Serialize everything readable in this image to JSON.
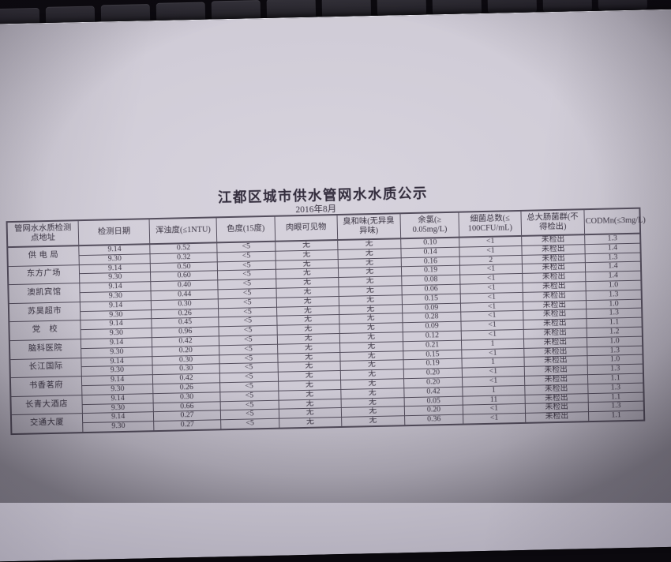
{
  "photo": {
    "background_color": "#0b090e",
    "paper_color": "#cfcbd6",
    "ink_color": "#3a3442",
    "table_line_color": "#534d5c"
  },
  "document": {
    "title": "江都区城市供水管网水水质公示",
    "subtitle": "2016年8月",
    "table": {
      "headers": [
        "管网水水质检测\n点地址",
        "检测日期",
        "浑浊度(≤1NTU)",
        "色度(15度)",
        "肉眼可见物",
        "臭和味(无异臭\n异味)",
        "余氯(≥\n0.05mg/L)",
        "细菌总数(≤\n100CFU/mL)",
        "总大肠菌群(不\n得检出)",
        "CODMn(≤3mg/L)"
      ],
      "groups": [
        {
          "location": "供 电 局",
          "rows": [
            [
              "9.14",
              "0.52",
              "<5",
              "无",
              "无",
              "0.10",
              "<1",
              "未检出",
              "1.3"
            ],
            [
              "9.30",
              "0.32",
              "<5",
              "无",
              "无",
              "0.14",
              "<1",
              "未检出",
              "1.4"
            ]
          ]
        },
        {
          "location": "东方广场",
          "rows": [
            [
              "9.14",
              "0.50",
              "<5",
              "无",
              "无",
              "0.16",
              "2",
              "未检出",
              "1.3"
            ],
            [
              "9.30",
              "0.60",
              "<5",
              "无",
              "无",
              "0.19",
              "<1",
              "未检出",
              "1.4"
            ]
          ]
        },
        {
          "location": "澳凯宾馆",
          "rows": [
            [
              "9.14",
              "0.40",
              "<5",
              "无",
              "无",
              "0.08",
              "<1",
              "未检出",
              "1.4"
            ],
            [
              "9.30",
              "0.44",
              "<5",
              "无",
              "无",
              "0.06",
              "<1",
              "未检出",
              "1.0"
            ]
          ]
        },
        {
          "location": "苏昊超市",
          "rows": [
            [
              "9.14",
              "0.30",
              "<5",
              "无",
              "无",
              "0.15",
              "<1",
              "未检出",
              "1.3"
            ],
            [
              "9.30",
              "0.26",
              "<5",
              "无",
              "无",
              "0.09",
              "<1",
              "未检出",
              "1.0"
            ]
          ]
        },
        {
          "location": "党　校",
          "rows": [
            [
              "9.14",
              "0.45",
              "<5",
              "无",
              "无",
              "0.28",
              "<1",
              "未检出",
              "1.3"
            ],
            [
              "9.30",
              "0.96",
              "<5",
              "无",
              "无",
              "0.09",
              "<1",
              "未检出",
              "1.1"
            ]
          ]
        },
        {
          "location": "脑科医院",
          "rows": [
            [
              "9.14",
              "0.42",
              "<5",
              "无",
              "无",
              "0.12",
              "<1",
              "未检出",
              "1.2"
            ],
            [
              "9.30",
              "0.20",
              "<5",
              "无",
              "无",
              "0.21",
              "1",
              "未检出",
              "1.0"
            ]
          ]
        },
        {
          "location": "长江国际",
          "rows": [
            [
              "9.14",
              "0.30",
              "<5",
              "无",
              "无",
              "0.15",
              "<1",
              "未检出",
              "1.3"
            ],
            [
              "9.30",
              "0.30",
              "<5",
              "无",
              "无",
              "0.19",
              "1",
              "未检出",
              "1.0"
            ]
          ]
        },
        {
          "location": "书香茗府",
          "rows": [
            [
              "9.14",
              "0.42",
              "<5",
              "无",
              "无",
              "0.20",
              "<1",
              "未检出",
              "1.3"
            ],
            [
              "9.30",
              "0.26",
              "<5",
              "无",
              "无",
              "0.20",
              "<1",
              "未检出",
              "1.1"
            ]
          ]
        },
        {
          "location": "长青大酒店",
          "rows": [
            [
              "9.14",
              "0.30",
              "<5",
              "无",
              "无",
              "0.42",
              "1",
              "未检出",
              "1.3"
            ],
            [
              "9.30",
              "0.66",
              "<5",
              "无",
              "无",
              "0.05",
              "11",
              "未检出",
              "1.1"
            ]
          ]
        },
        {
          "location": "交通大厦",
          "rows": [
            [
              "9.14",
              "0.27",
              "<5",
              "无",
              "无",
              "0.20",
              "<1",
              "未检出",
              "1.3"
            ],
            [
              "9.30",
              "0.27",
              "<5",
              "无",
              "无",
              "0.36",
              "<1",
              "未检出",
              "1.1"
            ]
          ]
        }
      ]
    }
  }
}
